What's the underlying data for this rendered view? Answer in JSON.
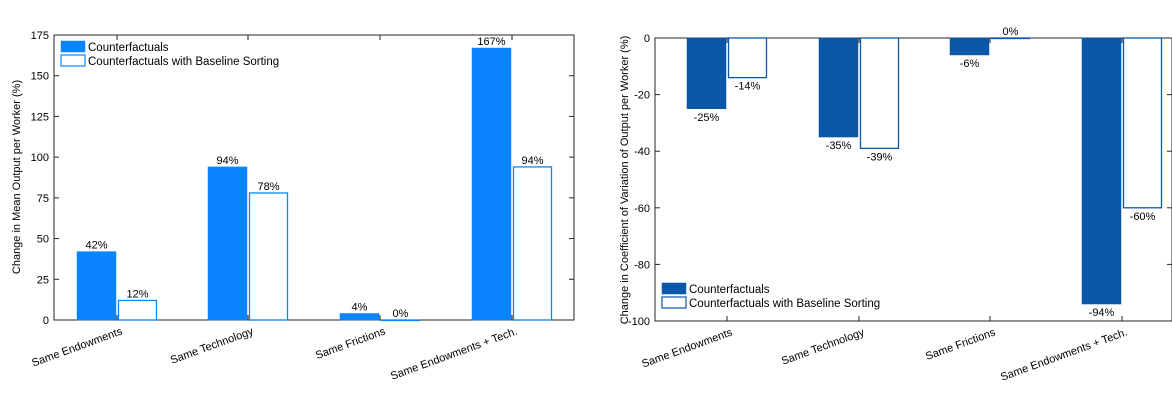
{
  "chart_data": [
    {
      "type": "bar",
      "categories": [
        "Same Endowments",
        "Same Technology",
        "Same Frictions",
        "Same Endowments + Tech."
      ],
      "series": [
        {
          "name": "Counterfactuals",
          "values": [
            42,
            94,
            4,
            167
          ],
          "labels": [
            "42%",
            "94%",
            "4%",
            "167%"
          ],
          "style": "filled",
          "color": "#0A84FF"
        },
        {
          "name": "Counterfactuals with Baseline Sorting",
          "values": [
            12,
            78,
            0,
            94
          ],
          "labels": [
            "12%",
            "78%",
            "0%",
            "94%"
          ],
          "style": "outline",
          "color": "#0A84FF"
        }
      ],
      "ylabel": "Change in Mean Output per Worker (%)",
      "xlabel": "",
      "ylim": [
        0,
        175
      ],
      "yticks": [
        "0",
        "25",
        "50",
        "75",
        "100",
        "125",
        "150",
        "175"
      ],
      "legend_position": "top-left",
      "grid": false
    },
    {
      "type": "bar",
      "categories": [
        "Same Endowments",
        "Same Technology",
        "Same Frictions",
        "Same Endowments + Tech."
      ],
      "series": [
        {
          "name": "Counterfactuals",
          "values": [
            -25,
            -35,
            -6,
            -94
          ],
          "labels": [
            "-25%",
            "-35%",
            "-6%",
            "-94%"
          ],
          "style": "filled",
          "color": "#0B57A8"
        },
        {
          "name": "Counterfactuals with Baseline Sorting",
          "values": [
            -14,
            -39,
            0,
            -60
          ],
          "labels": [
            "-14%",
            "-39%",
            "0%",
            "-60%"
          ],
          "style": "outline",
          "color": "#0B57A8"
        }
      ],
      "ylabel": "Change in Coefficient of Variation of Output per Worker (%)",
      "xlabel": "",
      "ylim": [
        -100,
        0
      ],
      "yticks": [
        "-100",
        "-80",
        "-60",
        "-40",
        "-20",
        "0"
      ],
      "legend_position": "bottom-left",
      "grid": false
    }
  ]
}
